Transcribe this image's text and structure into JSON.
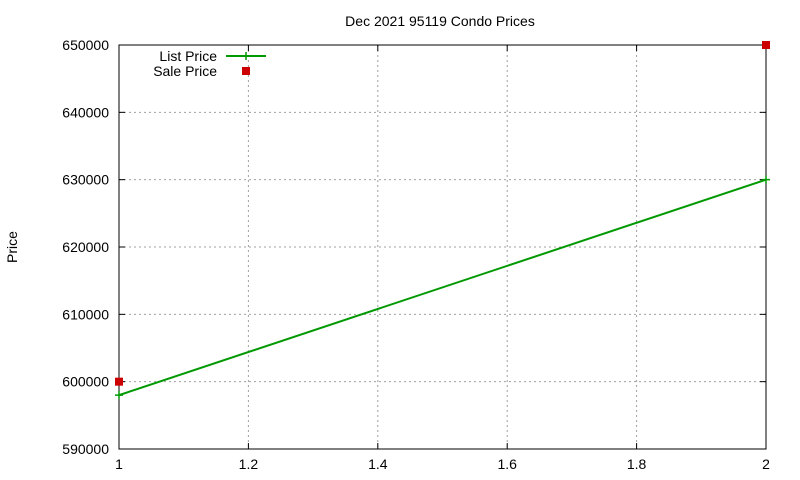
{
  "chart_data": {
    "type": "line",
    "title": "Dec 2021 95119 Condo Prices",
    "xlabel": "",
    "ylabel": "Price",
    "xlim": [
      1,
      2
    ],
    "ylim": [
      590000,
      650000
    ],
    "x_ticks": [
      "1",
      "1.2",
      "1.4",
      "1.6",
      "1.8",
      "2"
    ],
    "y_ticks": [
      "590000",
      "600000",
      "610000",
      "620000",
      "630000",
      "640000",
      "650000"
    ],
    "grid": true,
    "legend_position": "top-left",
    "series": [
      {
        "name": "List Price",
        "style": "line+cross",
        "color": "#009900",
        "points": [
          {
            "x": 1,
            "y": 598000
          },
          {
            "x": 2,
            "y": 630000
          }
        ]
      },
      {
        "name": "Sale Price",
        "style": "square",
        "color": "#cc0000",
        "points": [
          {
            "x": 1,
            "y": 600000
          },
          {
            "x": 2,
            "y": 650000
          }
        ]
      }
    ]
  }
}
